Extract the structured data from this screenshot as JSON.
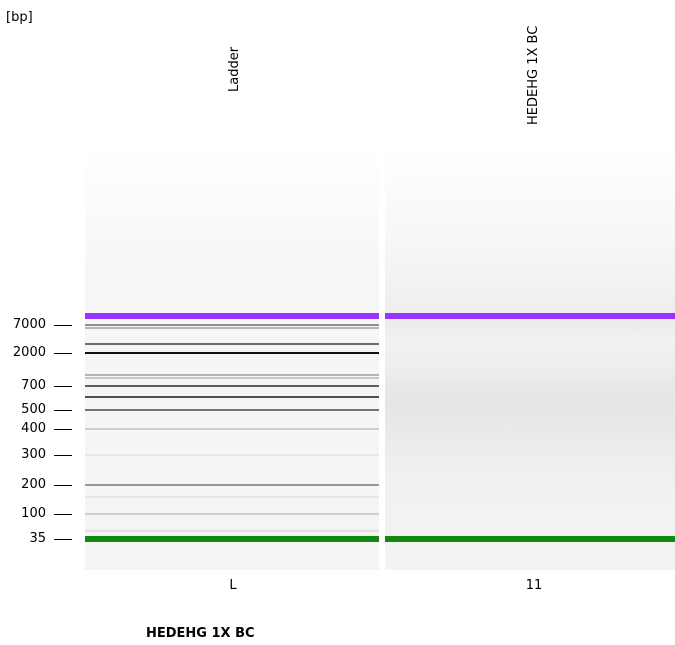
{
  "chart_data": {
    "type": "gel",
    "y_unit_label": "[bp]",
    "y_ticks": [
      7000,
      2000,
      700,
      500,
      400,
      300,
      200,
      100,
      35
    ],
    "lanes": [
      {
        "name": "Ladder",
        "id": "L",
        "bands": [
          {
            "bp": 10380,
            "color": "#9933ff",
            "intensity": 1.0,
            "marker": "upper"
          },
          {
            "bp": 7000,
            "color": "#777777",
            "intensity": 0.8
          },
          {
            "bp": 6000,
            "color": "#888888",
            "intensity": 0.6
          },
          {
            "bp": 3000,
            "color": "#555555",
            "intensity": 0.85
          },
          {
            "bp": 2000,
            "color": "#111111",
            "intensity": 1.0
          },
          {
            "bp": 1000,
            "color": "#888888",
            "intensity": 0.6
          },
          {
            "bp": 900,
            "color": "#999999",
            "intensity": 0.5
          },
          {
            "bp": 700,
            "color": "#444444",
            "intensity": 0.85
          },
          {
            "bp": 600,
            "color": "#333333",
            "intensity": 0.85
          },
          {
            "bp": 500,
            "color": "#555555",
            "intensity": 0.8
          },
          {
            "bp": 400,
            "color": "#aaaaaa",
            "intensity": 0.5
          },
          {
            "bp": 300,
            "color": "#d0d0d0",
            "intensity": 0.3
          },
          {
            "bp": 200,
            "color": "#777777",
            "intensity": 0.75
          },
          {
            "bp": 150,
            "color": "#c8c8c8",
            "intensity": 0.35
          },
          {
            "bp": 100,
            "color": "#aaaaaa",
            "intensity": 0.5
          },
          {
            "bp": 50,
            "color": "#c0c0c0",
            "intensity": 0.35
          },
          {
            "bp": 35,
            "color": "#118811",
            "intensity": 1.0,
            "marker": "lower"
          }
        ]
      },
      {
        "name": "HEDEHG 1X BC",
        "id": "11",
        "bands": [
          {
            "bp": 10380,
            "color": "#9933ff",
            "intensity": 1.0,
            "marker": "upper"
          },
          {
            "bp": 35,
            "color": "#118811",
            "intensity": 1.0,
            "marker": "lower"
          }
        ]
      }
    ],
    "title": "HEDEHG 1X BC"
  }
}
